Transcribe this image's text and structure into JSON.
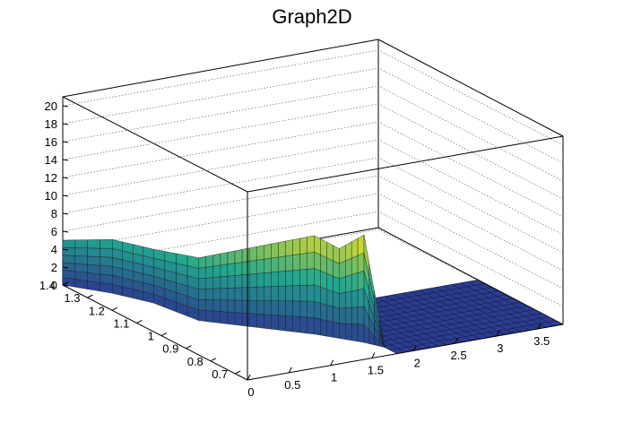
{
  "chart_data": {
    "type": "surface",
    "title": "Graph2D",
    "xlabel": "",
    "ylabel": "",
    "zlabel": "",
    "xlim": [
      0,
      3.8
    ],
    "ylim": [
      0.65,
      1.4
    ],
    "zlim": [
      0,
      21
    ],
    "x_ticks": [
      "0",
      "0.5",
      "1",
      "1.5",
      "2",
      "2.5",
      "3",
      "3.5"
    ],
    "y_ticks": [
      "0.7",
      "0.8",
      "0.9",
      "1",
      "1.1",
      "1.2",
      "1.3",
      "1.4"
    ],
    "z_ticks": [
      "0",
      "2",
      "4",
      "6",
      "8",
      "10",
      "12",
      "14",
      "16",
      "18",
      "20"
    ],
    "grid": true,
    "colormap": "viridis-like (dark blue to yellow)",
    "colors": {
      "low": "#2b3d8f",
      "mid": "#21a88f",
      "high": "#f5e21e"
    },
    "surface": {
      "description_points": [
        {
          "x": 0.0,
          "y": 1.4,
          "z": 5
        },
        {
          "x": 0.3,
          "y": 1.3,
          "z": 6
        },
        {
          "x": 0.5,
          "y": 1.2,
          "z": 6
        },
        {
          "x": 0.6,
          "y": 1.05,
          "z": 7
        },
        {
          "x": 0.8,
          "y": 1.0,
          "z": 8
        },
        {
          "x": 1.0,
          "y": 0.95,
          "z": 9
        },
        {
          "x": 1.2,
          "y": 0.9,
          "z": 10
        },
        {
          "x": 1.4,
          "y": 0.85,
          "z": 11
        },
        {
          "x": 1.55,
          "y": 0.8,
          "z": 10
        },
        {
          "x": 1.7,
          "y": 0.75,
          "z": 12
        },
        {
          "x": 1.8,
          "y": 0.7,
          "z": 0
        },
        {
          "x": 3.8,
          "y": 0.65,
          "z": 0
        }
      ]
    }
  }
}
